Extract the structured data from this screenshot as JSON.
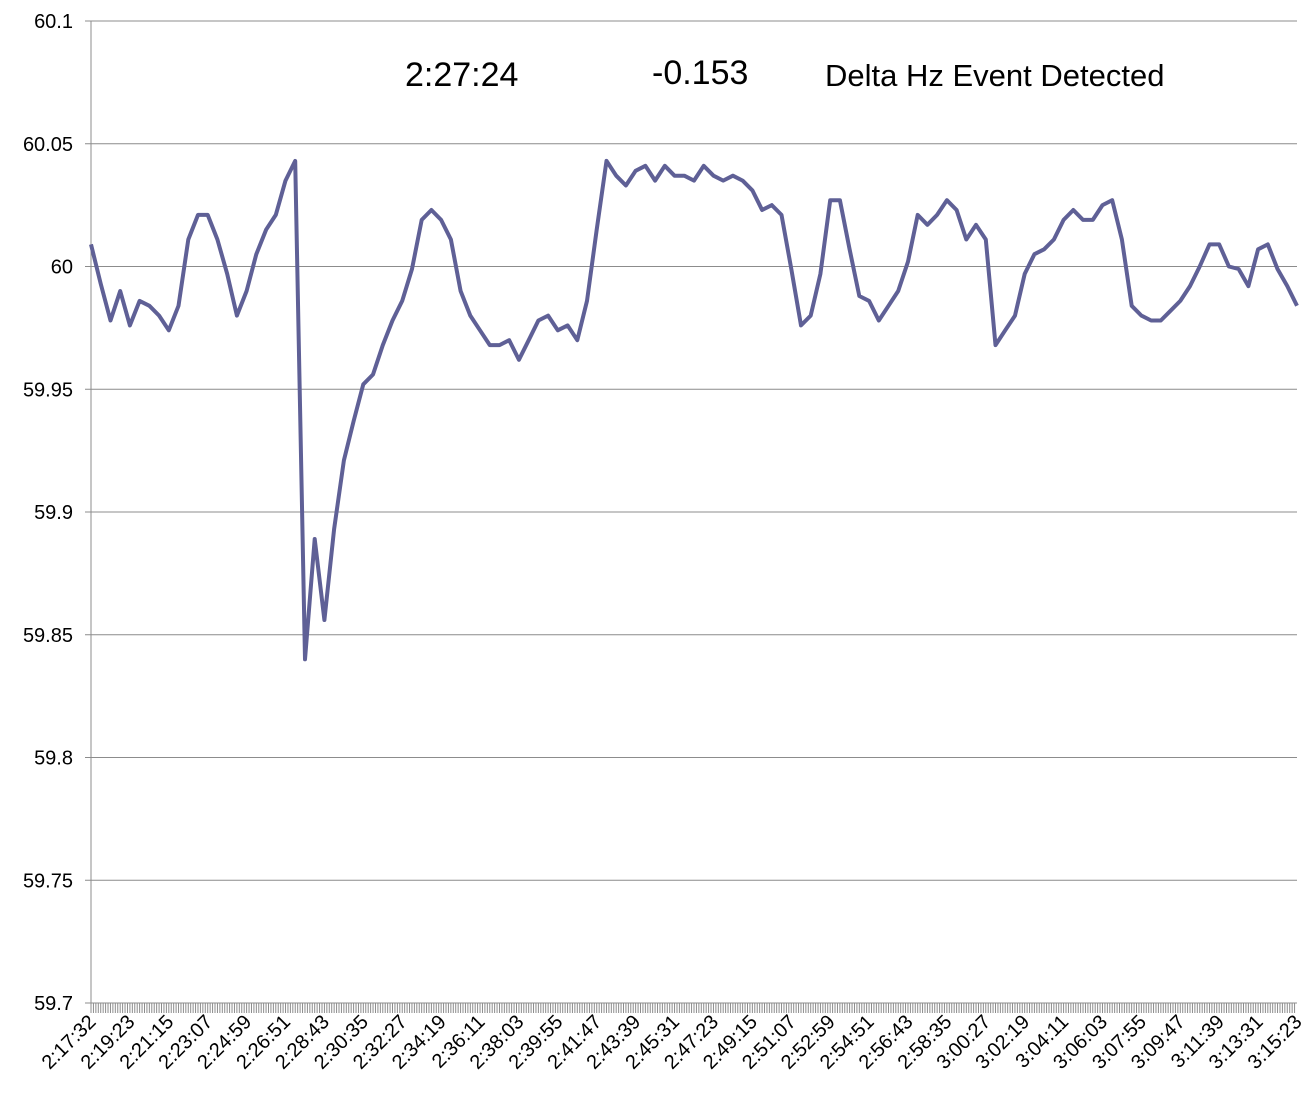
{
  "chart_data": {
    "type": "line",
    "annotations": [
      "2:27:24",
      "-0.153",
      "Delta Hz Event Detected"
    ],
    "categories": [
      "2:17:32",
      null,
      null,
      null,
      "2:19:23",
      null,
      null,
      null,
      "2:21:15",
      null,
      null,
      null,
      "2:23:07",
      null,
      null,
      null,
      "2:24:59",
      null,
      null,
      null,
      "2:26:51",
      null,
      null,
      null,
      "2:28:43",
      null,
      null,
      null,
      "2:30:35",
      null,
      null,
      null,
      "2:32:27",
      null,
      null,
      null,
      "2:34:19",
      null,
      null,
      null,
      "2:36:11",
      null,
      null,
      null,
      "2:38:03",
      null,
      null,
      null,
      "2:39:55",
      null,
      null,
      null,
      "2:41:47",
      null,
      null,
      null,
      "2:43:39",
      null,
      null,
      null,
      "2:45:31",
      null,
      null,
      null,
      "2:47:23",
      null,
      null,
      null,
      "2:49:15",
      null,
      null,
      null,
      "2:51:07",
      null,
      null,
      null,
      "2:52:59",
      null,
      null,
      null,
      "2:54:51",
      null,
      null,
      null,
      "2:56:43",
      null,
      null,
      null,
      "2:58:35",
      null,
      null,
      null,
      "3:00:27",
      null,
      null,
      null,
      "3:02:19",
      null,
      null,
      null,
      "3:04:11",
      null,
      null,
      null,
      "3:06:03",
      null,
      null,
      null,
      "3:07:55",
      null,
      null,
      null,
      "3:09:47",
      null,
      null,
      null,
      "3:11:39",
      null,
      null,
      null,
      "3:13:31",
      null,
      null,
      null,
      "3:15:23"
    ],
    "values": [
      60.009,
      59.993,
      59.978,
      59.99,
      59.976,
      59.986,
      59.984,
      59.98,
      59.974,
      59.984,
      60.011,
      60.021,
      60.021,
      60.011,
      59.997,
      59.98,
      59.99,
      60.005,
      60.015,
      60.021,
      60.035,
      60.043,
      59.84,
      59.889,
      59.856,
      59.893,
      59.921,
      59.937,
      59.952,
      59.956,
      59.968,
      59.978,
      59.986,
      59.999,
      60.019,
      60.023,
      60.019,
      60.011,
      59.99,
      59.98,
      59.974,
      59.968,
      59.968,
      59.97,
      59.962,
      59.97,
      59.978,
      59.98,
      59.974,
      59.976,
      59.97,
      59.986,
      60.015,
      60.043,
      60.037,
      60.033,
      60.039,
      60.041,
      60.035,
      60.041,
      60.037,
      60.037,
      60.035,
      60.041,
      60.037,
      60.035,
      60.037,
      60.035,
      60.031,
      60.023,
      60.025,
      60.021,
      59.999,
      59.976,
      59.98,
      59.997,
      60.027,
      60.027,
      60.007,
      59.988,
      59.986,
      59.978,
      59.984,
      59.99,
      60.002,
      60.021,
      60.017,
      60.021,
      60.027,
      60.023,
      60.011,
      60.017,
      60.011,
      59.968,
      59.974,
      59.98,
      59.997,
      60.005,
      60.007,
      60.011,
      60.019,
      60.023,
      60.019,
      60.019,
      60.025,
      60.027,
      60.011,
      59.984,
      59.98,
      59.978,
      59.978,
      59.982,
      59.986,
      59.992,
      60.0,
      60.009,
      60.009,
      60.0,
      59.999,
      59.992,
      60.007,
      60.009,
      59.999,
      59.992,
      59.984
    ],
    "color": "#5f6096",
    "ylim": [
      59.7,
      60.1
    ],
    "yticks": [
      59.7,
      59.75,
      59.8,
      59.85,
      59.9,
      59.95,
      60,
      60.05,
      60.1
    ],
    "grid": true
  }
}
